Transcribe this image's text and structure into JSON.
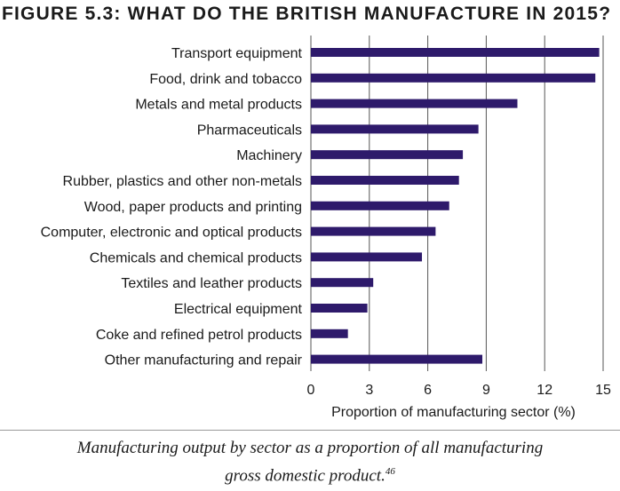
{
  "figure": {
    "title": "FIGURE 5.3: WHAT DO THE BRITISH MANUFACTURE IN 2015?",
    "caption_line1": "Manufacturing output by sector as a proportion of all manufacturing",
    "caption_line2": "gross domestic product.",
    "caption_note": "46"
  },
  "chart_data": {
    "type": "bar",
    "orientation": "horizontal",
    "categories": [
      "Transport equipment",
      "Food, drink and tobacco",
      "Metals and metal products",
      "Pharmaceuticals",
      "Machinery",
      "Rubber, plastics and other non-metals",
      "Wood, paper products and printing",
      "Computer, electronic and optical products",
      "Chemicals and chemical products",
      "Textiles and leather products",
      "Electrical equipment",
      "Coke and refined petrol products",
      "Other manufacturing and repair"
    ],
    "values": [
      14.8,
      14.6,
      10.6,
      8.6,
      7.8,
      7.6,
      7.1,
      6.4,
      5.7,
      3.2,
      2.9,
      1.9,
      8.8
    ],
    "xlabel": "Proportion of manufacturing sector (%)",
    "ylabel": "",
    "xlim": [
      0,
      15
    ],
    "xticks": [
      0,
      3,
      6,
      9,
      12,
      15
    ],
    "grid": "vertical",
    "bar_color": "#2e1a6b",
    "grid_color": "#555555"
  }
}
